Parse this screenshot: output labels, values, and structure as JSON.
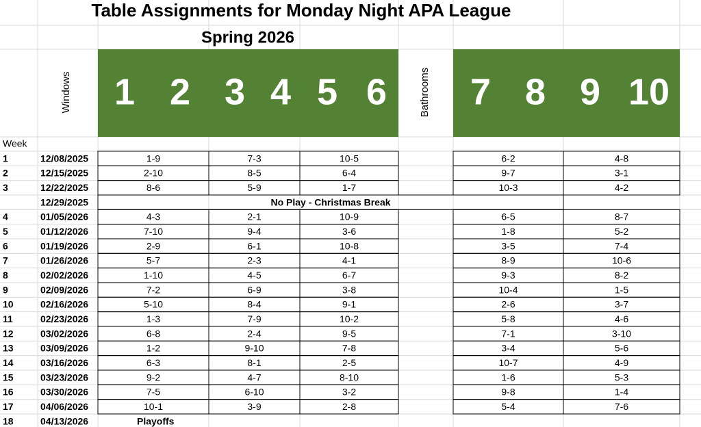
{
  "title": "Table Assignments for Monday Night APA League",
  "subtitle": "Spring 2026",
  "left_label": "Windows",
  "right_label": "Bathrooms",
  "left_tables": [
    "1",
    "2",
    "3",
    "4",
    "5",
    "6"
  ],
  "right_tables": [
    "7",
    "8",
    "9",
    "10"
  ],
  "week_header": "Week",
  "rows": [
    {
      "week": "1",
      "date": "12/08/2025",
      "pairs": [
        "1-9",
        "7-3",
        "10-5",
        "6-2",
        "4-8"
      ]
    },
    {
      "week": "2",
      "date": "12/15/2025",
      "pairs": [
        "2-10",
        "8-5",
        "6-4",
        "9-7",
        "3-1"
      ]
    },
    {
      "week": "3",
      "date": "12/22/2025",
      "pairs": [
        "8-6",
        "5-9",
        "1-7",
        "10-3",
        "4-2"
      ]
    },
    {
      "date": "12/29/2025",
      "note": "No Play - Christmas Break"
    },
    {
      "week": "4",
      "date": "01/05/2026",
      "pairs": [
        "4-3",
        "2-1",
        "10-9",
        "6-5",
        "8-7"
      ]
    },
    {
      "week": "5",
      "date": "01/12/2026",
      "pairs": [
        "7-10",
        "9-4",
        "3-6",
        "1-8",
        "5-2"
      ]
    },
    {
      "week": "6",
      "date": "01/19/2026",
      "pairs": [
        "2-9",
        "6-1",
        "10-8",
        "3-5",
        "7-4"
      ]
    },
    {
      "week": "7",
      "date": "01/26/2026",
      "pairs": [
        "5-7",
        "2-3",
        "4-1",
        "8-9",
        "10-6"
      ]
    },
    {
      "week": "8",
      "date": "02/02/2026",
      "pairs": [
        "1-10",
        "4-5",
        "6-7",
        "9-3",
        "8-2"
      ]
    },
    {
      "week": "9",
      "date": "02/09/2026",
      "pairs": [
        "7-2",
        "6-9",
        "3-8",
        "10-4",
        "1-5"
      ]
    },
    {
      "week": "10",
      "date": "02/16/2026",
      "pairs": [
        "5-10",
        "8-4",
        "9-1",
        "2-6",
        "3-7"
      ]
    },
    {
      "week": "11",
      "date": "02/23/2026",
      "pairs": [
        "1-3",
        "7-9",
        "10-2",
        "5-8",
        "4-6"
      ]
    },
    {
      "week": "12",
      "date": "03/02/2026",
      "pairs": [
        "6-8",
        "2-4",
        "9-5",
        "7-1",
        "3-10"
      ]
    },
    {
      "week": "13",
      "date": "03/09/2026",
      "pairs": [
        "1-2",
        "9-10",
        "7-8",
        "3-4",
        "5-6"
      ]
    },
    {
      "week": "14",
      "date": "03/16/2026",
      "pairs": [
        "6-3",
        "8-1",
        "2-5",
        "10-7",
        "4-9"
      ]
    },
    {
      "week": "15",
      "date": "03/23/2026",
      "pairs": [
        "9-2",
        "4-7",
        "8-10",
        "1-6",
        "5-3"
      ]
    },
    {
      "week": "16",
      "date": "03/30/2026",
      "pairs": [
        "7-5",
        "6-10",
        "3-2",
        "9-8",
        "1-4"
      ]
    },
    {
      "week": "17",
      "date": "04/06/2026",
      "pairs": [
        "10-1",
        "3-9",
        "2-8",
        "5-4",
        "7-6"
      ]
    },
    {
      "week": "18",
      "date": "04/13/2026",
      "note": "Playoffs"
    }
  ]
}
